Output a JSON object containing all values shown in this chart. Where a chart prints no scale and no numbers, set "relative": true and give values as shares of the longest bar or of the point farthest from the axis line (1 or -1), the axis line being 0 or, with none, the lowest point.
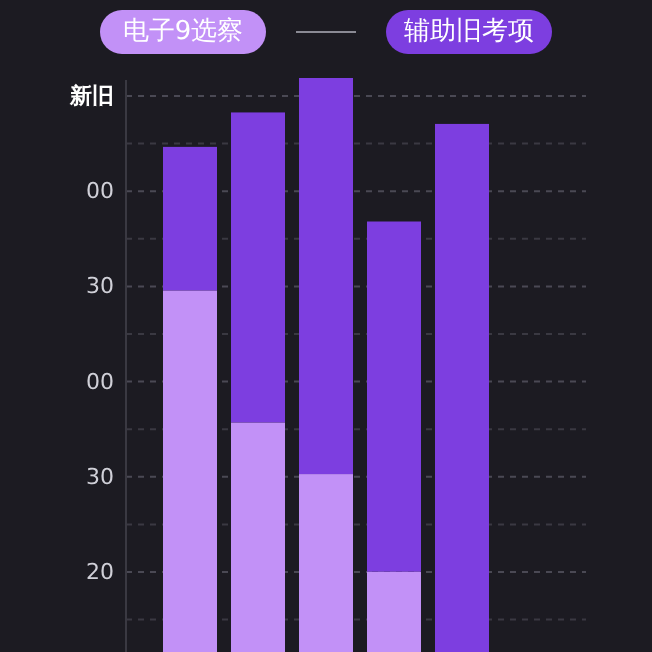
{
  "chart_data": {
    "type": "bar",
    "stacked": true,
    "relative": true,
    "categories": [
      null,
      null,
      null,
      null,
      null
    ],
    "series": [
      {
        "name": "电子9选察",
        "color": "#c291f7",
        "values": [
          0.63,
          0.4,
          0.31,
          0.14,
          null
        ]
      },
      {
        "name": "辅助旧考项",
        "color": "#7d3ee0",
        "values": [
          0.25,
          0.54,
          0.69,
          0.61,
          0.92
        ]
      }
    ],
    "annotations": [
      "新旧",
      "00",
      "30",
      "00",
      "30",
      "20"
    ],
    "grid": "y",
    "legend": "top"
  }
}
